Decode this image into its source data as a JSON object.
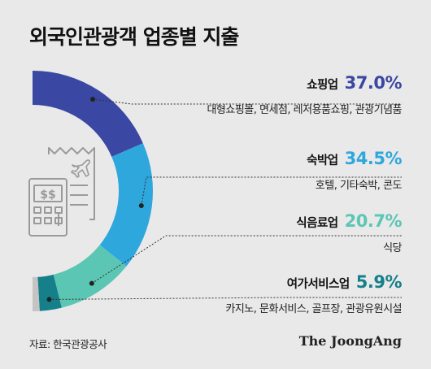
{
  "title": "외국인관광객 업종별 지출",
  "source": "자료: 한국관광공사",
  "brand": "The JoongAng",
  "chart_data": {
    "type": "donut",
    "unit": "%",
    "categories": [
      {
        "name": "쇼핑업",
        "value_label": "37.0%",
        "value": 37.0,
        "color": "#3a47a3",
        "desc": "대형쇼핑몰, 면세점, 레저용품쇼핑, 관광기념품"
      },
      {
        "name": "숙박업",
        "value_label": "34.5%",
        "value": 34.5,
        "color": "#2ea7dd",
        "desc": "호텔, 기타숙박, 콘도"
      },
      {
        "name": "식음료업",
        "value_label": "20.7%",
        "value": 20.7,
        "color": "#5cc6b4",
        "desc": "식당"
      },
      {
        "name": "여가서비스업",
        "value_label": "5.9%",
        "value": 5.9,
        "color": "#157f8a",
        "desc": "카지노, 문화서비스, 골프장, 관광유원시설"
      }
    ],
    "remainder": {
      "value": 1.9,
      "color": "#c4c4c4"
    }
  }
}
